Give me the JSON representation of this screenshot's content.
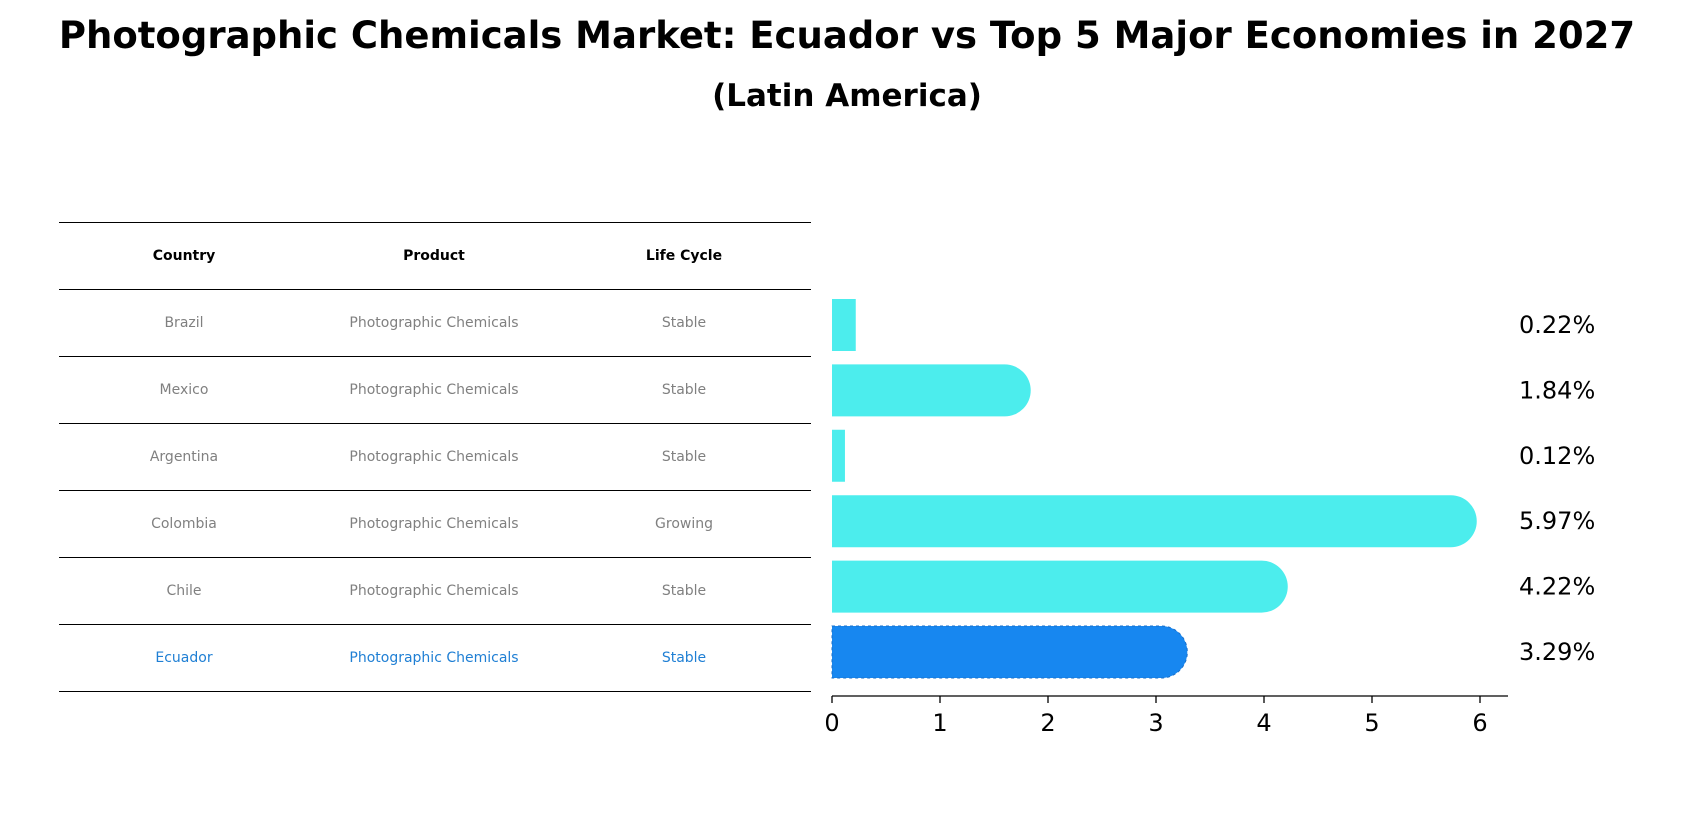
{
  "title": "Photographic Chemicals Market: Ecuador vs Top 5 Major Economies in 2027",
  "subtitle": "(Latin America)",
  "table": {
    "headers": [
      "Country",
      "Product",
      "Life Cycle"
    ],
    "rows": [
      {
        "country": "Brazil",
        "product": "Photographic Chemicals",
        "life_cycle": "Stable"
      },
      {
        "country": "Mexico",
        "product": "Photographic Chemicals",
        "life_cycle": "Stable"
      },
      {
        "country": "Argentina",
        "product": "Photographic Chemicals",
        "life_cycle": "Stable"
      },
      {
        "country": "Colombia",
        "product": "Photographic Chemicals",
        "life_cycle": "Growing"
      },
      {
        "country": "Chile",
        "product": "Photographic Chemicals",
        "life_cycle": "Stable"
      },
      {
        "country": "Ecuador",
        "product": "Photographic Chemicals",
        "life_cycle": "Stable"
      }
    ]
  },
  "colors": {
    "bar": "#4ceded",
    "highlight_bar": "#1787f0",
    "highlight_text": "#1f7fd4"
  },
  "chart_data": {
    "type": "bar",
    "orientation": "horizontal",
    "categories": [
      "Brazil",
      "Mexico",
      "Argentina",
      "Colombia",
      "Chile",
      "Ecuador"
    ],
    "values": [
      0.22,
      1.84,
      0.12,
      5.97,
      4.22,
      3.29
    ],
    "value_labels": [
      "0.22%",
      "1.84%",
      "0.12%",
      "5.97%",
      "4.22%",
      "3.29%"
    ],
    "highlight": "Ecuador",
    "xlim": [
      0,
      6.28
    ],
    "xticks": [
      0,
      1,
      2,
      3,
      4,
      5,
      6
    ],
    "title": "",
    "xlabel": "",
    "ylabel": "",
    "grid": false,
    "legend": "none"
  }
}
